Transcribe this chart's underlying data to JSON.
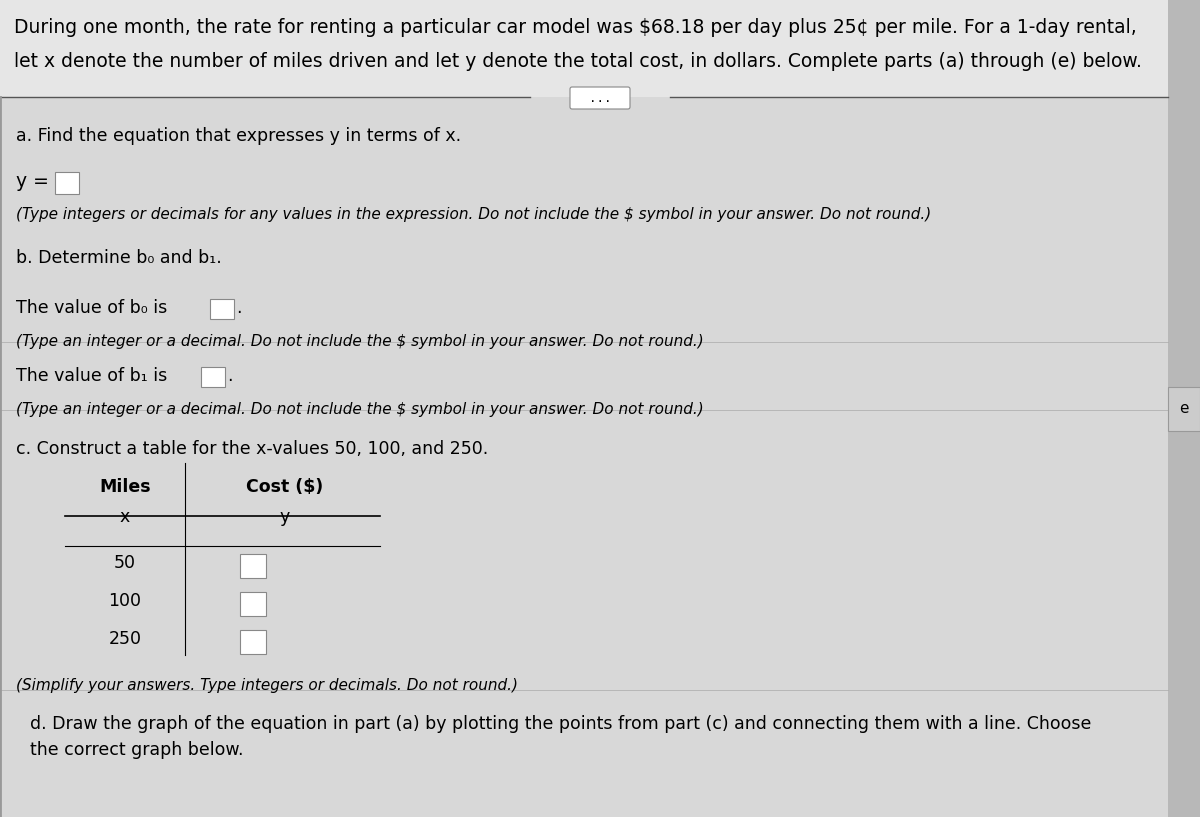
{
  "bg_color_header": "#e8e8e8",
  "bg_color_content": "#d4d4d4",
  "bg_color_overall": "#b8b8b8",
  "header_text_line1": "During one month, the rate for renting a particular car model was $68.18 per day plus 25¢ per mile. For a 1-day rental,",
  "header_text_line2": "let x denote the number of miles driven and let y denote the total cost, in dollars. Complete parts (a) through (e) below.",
  "part_a_label": "a. Find the equation that expresses y in terms of x.",
  "part_a_eq": "y =",
  "part_a_note": "(Type integers or decimals for any values in the expression. Do not include the $ symbol in your answer. Do not round.)",
  "part_b_label": "b. Determine b₀ and b₁.",
  "part_b_b0_text": "The value of b₀ is",
  "part_b_b0_period": ".",
  "part_b_b0_note": "(Type an integer or a decimal. Do not include the $ symbol in your answer. Do not round.)",
  "part_b_b1_text": "The value of b₁ is",
  "part_b_b1_period": ".",
  "part_b_b1_note": "(Type an integer or a decimal. Do not include the $ symbol in your answer. Do not round.)",
  "part_c_label": "c. Construct a table for the x-values 50, 100, and 250.",
  "table_col1_header1": "Miles",
  "table_col1_header2": "x",
  "table_col2_header1": "Cost ($)",
  "table_col2_header2": "y",
  "table_rows": [
    "50",
    "100",
    "250"
  ],
  "part_c_note": "(Simplify your answers. Type integers or decimals. Do not round.)",
  "part_d_text": "d. Draw the graph of the equation in part (a) by plotting the points from part (c) and connecting them with a line. Choose\nthe correct graph below.",
  "dots_text": "...",
  "right_tab": "e",
  "fs_header": 13.5,
  "fs_body": 12.5,
  "fs_note": 11.0,
  "fs_table": 12.5
}
